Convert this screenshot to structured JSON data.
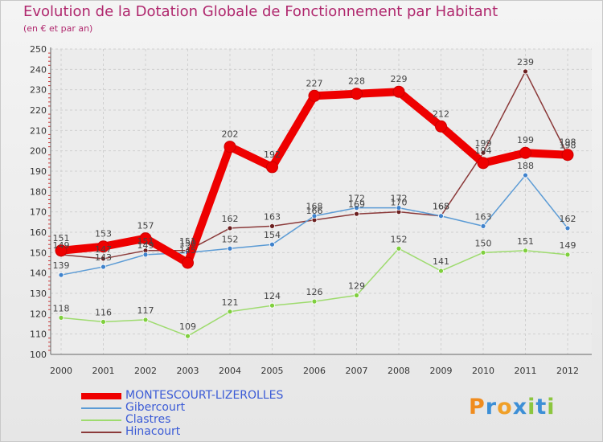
{
  "title": "Evolution de la Dotation Globale de Fonctionnement par Habitant",
  "subtitle": "(en € et par an)",
  "brand": {
    "letters": [
      "P",
      "r",
      "o",
      "x",
      "i",
      "t",
      "i"
    ],
    "colors": [
      "#f08c1e",
      "#3d8fd6",
      "#f0a028",
      "#3d8fd6",
      "#8cc63f",
      "#3d8fd6",
      "#8cc63f"
    ]
  },
  "chart_data": {
    "type": "line",
    "x": [
      "2000",
      "2001",
      "2002",
      "2003",
      "2004",
      "2005",
      "2006",
      "2007",
      "2008",
      "2009",
      "2010",
      "2011",
      "2012"
    ],
    "ylim": [
      100,
      250
    ],
    "yticks": [
      100,
      110,
      120,
      130,
      140,
      150,
      160,
      170,
      180,
      190,
      200,
      210,
      220,
      230,
      240,
      250
    ],
    "grid": true,
    "legend": "bottom-left",
    "series": [
      {
        "name": "MONTESCOURT-LIZEROLLES",
        "color": "#ee0000",
        "marker": "#ee0000",
        "values": [
          151,
          153,
          157,
          145,
          202,
          192,
          227,
          228,
          229,
          212,
          194,
          199,
          198
        ]
      },
      {
        "name": "Gibercourt",
        "color": "#5b9bd5",
        "marker": "#3f82cc",
        "values": [
          139,
          143,
          149,
          150,
          152,
          154,
          168,
          172,
          172,
          168,
          163,
          188,
          162
        ]
      },
      {
        "name": "Clastres",
        "color": "#9edb6e",
        "marker": "#7fcf3d",
        "values": [
          118,
          116,
          117,
          109,
          121,
          124,
          126,
          129,
          152,
          141,
          150,
          151,
          149
        ]
      },
      {
        "name": "Hinacourt",
        "color": "#8b3a3a",
        "marker": "#6b1f1f",
        "values": [
          149,
          147,
          151,
          151,
          162,
          163,
          166,
          169,
          170,
          168,
          199,
          239,
          198
        ]
      }
    ]
  }
}
